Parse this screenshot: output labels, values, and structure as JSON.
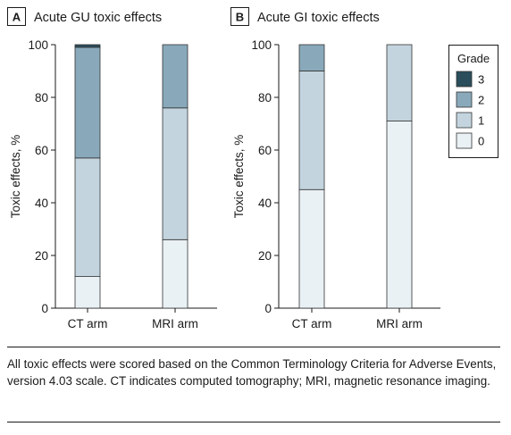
{
  "colors": {
    "grade_0": "#eaf1f5",
    "grade_1": "#c3d4de",
    "grade_2": "#89a9bb",
    "grade_3": "#2a4e5c",
    "axis": "#1a1a1a",
    "stroke": "#333333"
  },
  "legend": {
    "title": "Grade",
    "items": [
      {
        "label": "3",
        "color_key": "grade_3"
      },
      {
        "label": "2",
        "color_key": "grade_2"
      },
      {
        "label": "1",
        "color_key": "grade_1"
      },
      {
        "label": "0",
        "color_key": "grade_0"
      }
    ]
  },
  "caption": "All toxic effects were scored based on the Common Terminology Criteria for Adverse Events, version 4.03 scale. CT indicates computed tomography; MRI, magnetic resonance imaging.",
  "chart_data": [
    {
      "type": "bar",
      "stacked": true,
      "panel_label": "A",
      "title": "Acute GU toxic effects",
      "ylabel": "Toxic effects, %",
      "xlabel": "",
      "ylim": [
        0,
        100
      ],
      "yticks": [
        0,
        20,
        40,
        60,
        80,
        100
      ],
      "categories": [
        "CT arm",
        "MRI arm"
      ],
      "series": [
        {
          "name": "0",
          "values": [
            12,
            26
          ]
        },
        {
          "name": "1",
          "values": [
            45,
            50
          ]
        },
        {
          "name": "2",
          "values": [
            42,
            24
          ]
        },
        {
          "name": "3",
          "values": [
            1,
            0
          ]
        }
      ]
    },
    {
      "type": "bar",
      "stacked": true,
      "panel_label": "B",
      "title": "Acute GI toxic effects",
      "ylabel": "Toxic effects, %",
      "xlabel": "",
      "ylim": [
        0,
        100
      ],
      "yticks": [
        0,
        20,
        40,
        60,
        80,
        100
      ],
      "categories": [
        "CT arm",
        "MRI arm"
      ],
      "series": [
        {
          "name": "0",
          "values": [
            45,
            71
          ]
        },
        {
          "name": "1",
          "values": [
            45,
            29
          ]
        },
        {
          "name": "2",
          "values": [
            10,
            0
          ]
        },
        {
          "name": "3",
          "values": [
            0,
            0
          ]
        }
      ]
    }
  ]
}
